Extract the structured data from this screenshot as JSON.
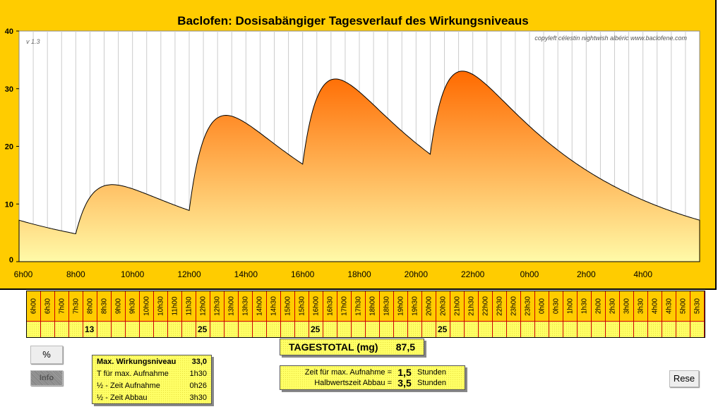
{
  "title": "Baclofen: Dosisabängiger Tagesverlauf des Wirkungsniveaus",
  "version": "v 1.3",
  "copyleft": "copyleft  célestin  nightwish  albéric  www.baclofene.com",
  "chart_data": {
    "type": "area",
    "title": "Baclofen: Dosisabängiger Tagesverlauf des Wirkungsniveaus",
    "ylim": [
      0,
      40
    ],
    "yticks": [
      "0",
      "10",
      "20",
      "30",
      "40"
    ],
    "xticks": [
      "6h00",
      "8h00",
      "10h00",
      "12h00",
      "14h00",
      "16h00",
      "18h00",
      "20h00",
      "22h00",
      "0h00",
      "2h00",
      "4h00"
    ],
    "x_range_hours": [
      0,
      24
    ],
    "doses": [
      {
        "time": "8h00",
        "t": 2,
        "mg": 13
      },
      {
        "time": "12h00",
        "t": 6,
        "mg": 25
      },
      {
        "time": "16h00",
        "t": 10,
        "mg": 25
      },
      {
        "time": "20h30",
        "t": 14.5,
        "mg": 25
      }
    ],
    "absorption_halflife_h": 0.433,
    "elimination_halflife_h": 3.5,
    "approx_points": [
      {
        "time": "6h00",
        "y": 7.3
      },
      {
        "time": "8h00",
        "y": 5.0
      },
      {
        "time": "9h15",
        "y": 13.0
      },
      {
        "time": "12h00",
        "y": 8.7
      },
      {
        "time": "13h15",
        "y": 25.2
      },
      {
        "time": "16h00",
        "y": 16.8
      },
      {
        "time": "17h15",
        "y": 31.5
      },
      {
        "time": "20h30",
        "y": 18.6
      },
      {
        "time": "21h45",
        "y": 33.0
      },
      {
        "time": "6h00",
        "y": 7.3
      }
    ],
    "colors": {
      "top": "#ff6a00",
      "bottom": "#fffaa8",
      "frame": "#ffcc00"
    }
  },
  "table": {
    "times": [
      "6h00",
      "6h30",
      "7h00",
      "7h30",
      "8h00",
      "8h30",
      "9h00",
      "9h30",
      "10h00",
      "10h30",
      "11h00",
      "11h30",
      "12h00",
      "12h30",
      "13h00",
      "13h30",
      "14h00",
      "14h30",
      "15h00",
      "15h30",
      "16h00",
      "16h30",
      "17h00",
      "17h30",
      "18h00",
      "18h30",
      "19h00",
      "19h30",
      "20h00",
      "20h30",
      "21h00",
      "21h30",
      "22h00",
      "22h30",
      "23h00",
      "23h30",
      "0h00",
      "0h30",
      "1h00",
      "1h30",
      "2h00",
      "2h30",
      "3h00",
      "3h30",
      "4h00",
      "4h30",
      "5h00",
      "5h30"
    ],
    "values": [
      "",
      "",
      "",
      "",
      "13",
      "",
      "",
      "",
      "",
      "",
      "",
      "",
      "25",
      "",
      "",
      "",
      "",
      "",
      "",
      "",
      "25",
      "",
      "",
      "",
      "",
      "",
      "",
      "",
      "",
      "25",
      "",
      "",
      "",
      "",
      "",
      "",
      "",
      "",
      "",
      "",
      "",
      "",
      "",
      "",
      "",
      "",
      "",
      ""
    ]
  },
  "buttons": {
    "percent": "%",
    "info": "Info",
    "reset": "Rese"
  },
  "total": {
    "label": "TAGESTOTAL (mg)",
    "value": "87,5"
  },
  "stats": [
    {
      "label": "Max. Wirkungsniveau",
      "value": "33,0"
    },
    {
      "label": "T für max. Aufnahme",
      "value": "1h30"
    },
    {
      "label": "½ - Zeit Aufnahme",
      "value": "0h26"
    },
    {
      "label": "½ - Zeit Abbau",
      "value": "3h30"
    }
  ],
  "params": [
    {
      "label": "Zeit für max. Aufnahme =",
      "value": "1,5",
      "unit": "Stunden"
    },
    {
      "label": "Halbwertszeit Abbau =",
      "value": "3,5",
      "unit": "Stunden"
    }
  ]
}
